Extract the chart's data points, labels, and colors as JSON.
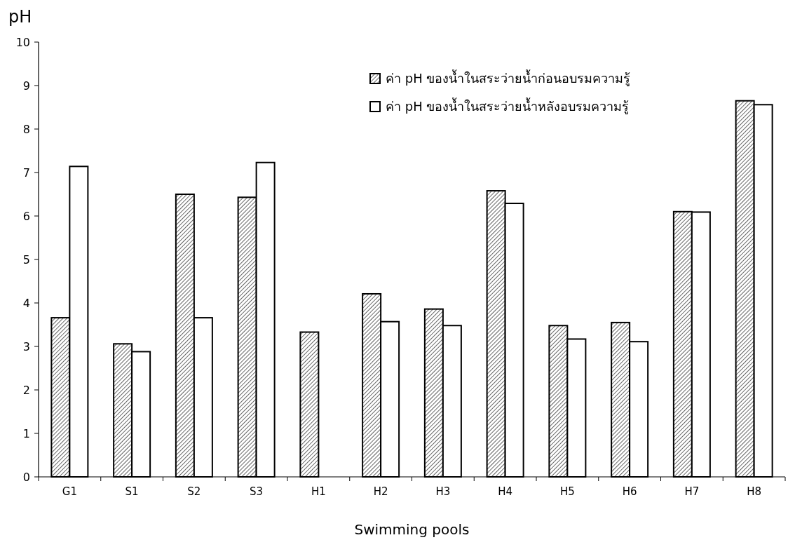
{
  "chart_data": {
    "type": "bar",
    "ylabel": "pH",
    "xlabel": "Swimming pools",
    "categories": [
      "G1",
      "S1",
      "S2",
      "S3",
      "H1",
      "H2",
      "H3",
      "H4",
      "H5",
      "H6",
      "H7",
      "H8"
    ],
    "series": [
      {
        "name": "ค่า pH ของน้ำในสระว่ายน้ำก่อนอบรมความรู้",
        "color": "#000000",
        "values": [
          3.66,
          3.06,
          6.5,
          6.43,
          3.33,
          4.21,
          3.86,
          6.58,
          3.48,
          3.55,
          6.1,
          8.65
        ]
      },
      {
        "name": "ค่า pH ของน้ำในสระว่ายน้ำหลังอบรมความรู้",
        "color": "#ffffff",
        "values": [
          7.14,
          2.88,
          3.66,
          7.23,
          null,
          3.57,
          3.48,
          6.29,
          3.17,
          3.11,
          6.09,
          8.56
        ]
      }
    ],
    "ylim": [
      0,
      10
    ],
    "yticks": [
      0,
      1,
      2,
      3,
      4,
      5,
      6,
      7,
      8,
      9,
      10
    ],
    "legend": "top right"
  }
}
